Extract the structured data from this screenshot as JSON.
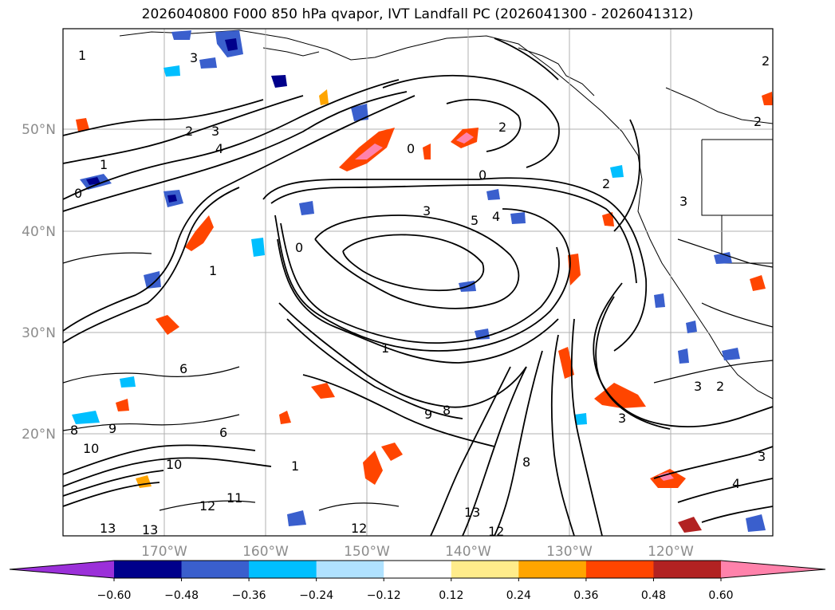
{
  "title": "2026040800 F000 850 hPa qvapor, IVT Landfall PC (2026041300 - 2026041312)",
  "lat_labels": [
    "50°N",
    "40°N",
    "30°N",
    "20°N"
  ],
  "lon_labels": [
    "170°W",
    "160°W",
    "150°W",
    "140°W",
    "130°W",
    "120°W"
  ],
  "colorbar": {
    "colors": [
      "#9b30d9",
      "#00008b",
      "#3a5fcd",
      "#00bfff",
      "#b0e2ff",
      "#ffffff",
      "#ffec8b",
      "#ffa500",
      "#ff4500",
      "#b22222",
      "#ff82ab"
    ],
    "tick_labels": [
      "−0.60",
      "−0.48",
      "−0.36",
      "−0.24",
      "−0.12",
      "0.12",
      "0.24",
      "0.36",
      "0.48",
      "0.60"
    ]
  },
  "contour_labels": [
    "1",
    "3",
    "2",
    "2",
    "0",
    "1",
    "0",
    "2",
    "0",
    "3",
    "5",
    "4",
    "1",
    "2",
    "3",
    "4",
    "0",
    "1",
    "3",
    "3",
    "2",
    "1",
    "6",
    "8",
    "10",
    "9",
    "10",
    "11",
    "12",
    "13",
    "13",
    "12",
    "13",
    "12",
    "6",
    "8",
    "9",
    "8",
    "3",
    "4",
    "2",
    "3"
  ]
}
